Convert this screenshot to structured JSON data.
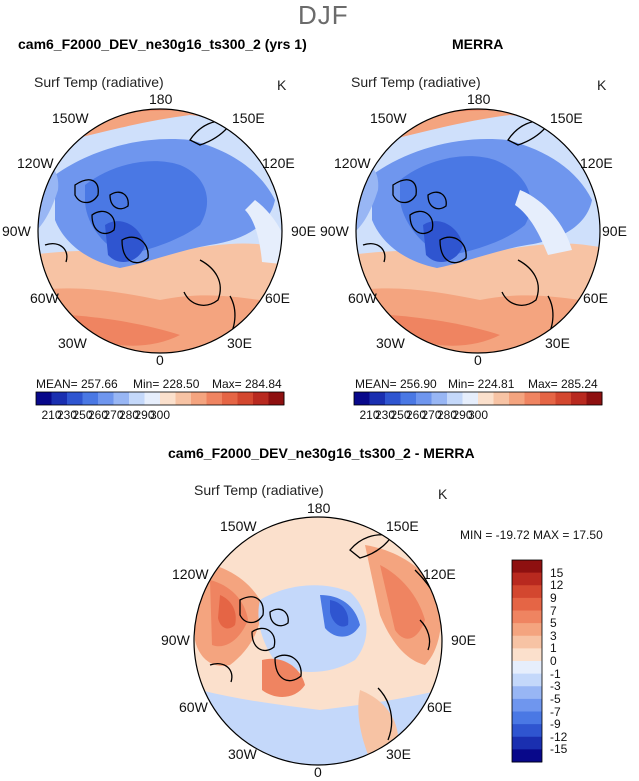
{
  "page": {
    "season": "DJF"
  },
  "maps": [
    {
      "title": "cam6_F2000_DEV_ne30g16_ts300_2 (yrs 1)",
      "variable": "Surf Temp (radiative)",
      "unit": "K",
      "lon_labels": [
        "180",
        "150E",
        "120E",
        "90E",
        "60E",
        "30E",
        "0",
        "30W",
        "60W",
        "90W",
        "120W",
        "150W"
      ],
      "mean_text": "MEAN= 257.66",
      "min_text": "Min= 228.50",
      "max_text": "Max= 284.84"
    },
    {
      "title": "MERRA",
      "variable": "Surf Temp (radiative)",
      "unit": "K",
      "lon_labels": [
        "180",
        "150E",
        "120E",
        "90E",
        "60E",
        "30E",
        "0",
        "30W",
        "60W",
        "90W",
        "120W",
        "150W"
      ],
      "mean_text": "MEAN= 256.90",
      "min_text": "Min= 224.81",
      "max_text": "Max= 285.24"
    },
    {
      "title": "cam6_F2000_DEV_ne30g16_ts300_2 - MERRA",
      "variable": "Surf Temp (radiative)",
      "unit": "K",
      "lon_labels": [
        "180",
        "150E",
        "120E",
        "90E",
        "60E",
        "30E",
        "0",
        "30W",
        "60W",
        "90W",
        "120W",
        "150W"
      ],
      "minmax_text": "MIN = -19.72  MAX =  17.50"
    }
  ],
  "colorbar_abs": {
    "labels": [
      "210",
      "230",
      "250",
      "260",
      "270",
      "280",
      "290",
      "300"
    ],
    "colors": [
      "#08088a",
      "#1a2fb0",
      "#2f55d0",
      "#4a78e4",
      "#6f96ee",
      "#98b6f4",
      "#c4d8fa",
      "#e6eefc",
      "#fbe0cc",
      "#f7c3a4",
      "#f4a47f",
      "#ef8461",
      "#e56545",
      "#d3472f",
      "#b8291f",
      "#8e1010"
    ]
  },
  "colorbar_diff": {
    "labels": [
      "15",
      "12",
      "9",
      "7",
      "5",
      "3",
      "1",
      "0",
      "-1",
      "-3",
      "-5",
      "-7",
      "-9",
      "-12",
      "-15"
    ],
    "colors": [
      "#8e1010",
      "#b8291f",
      "#d3472f",
      "#e56545",
      "#ef8461",
      "#f4a47f",
      "#f7c3a4",
      "#fbe0cc",
      "#e6eefc",
      "#c4d8fa",
      "#98b6f4",
      "#6f96ee",
      "#4a78e4",
      "#2f55d0",
      "#1a2fb0",
      "#08088a"
    ]
  }
}
